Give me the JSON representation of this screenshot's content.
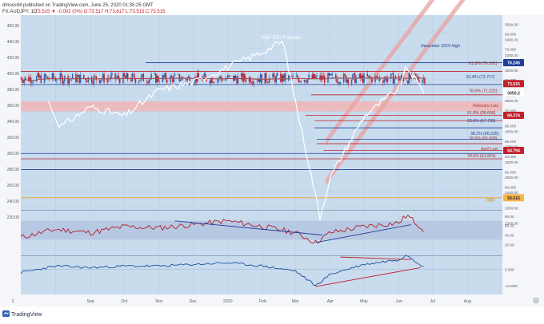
{
  "header": {
    "publisher_line": "dmoss94 published on TradingView.com, June 25, 2020 01:35:25 GMT",
    "symbol": "FX:AUDJPY, 1D",
    "ohlc": "73.515 ▼ -0.002 (0%) O:73.517 H:73.617 L:73.515 C:73.515"
  },
  "footer": {
    "brand": "TradingView"
  },
  "colors": {
    "candle_up": "#2d62b8",
    "candle_down": "#c0202a",
    "spx_line": "#ffffff",
    "ma_fast": "#b5443a",
    "ma_slow": "#6fa5cf",
    "channel": "#e7a3a0",
    "zone": "#f2b5b5",
    "rsi_line": "#b01e2a",
    "rsi_band": "#c9d3e8",
    "macd_line": "#1b4f9e",
    "trend_blue": "#1f3f9a",
    "trend_red": "#c0202a",
    "gold_line": "#f0a020"
  },
  "chart_data": [
    {
      "type": "candlestick",
      "title": "",
      "series": [
        {
          "name": "AUDJPY",
          "style": "candles",
          "x": [
            "2020-07-01",
            "2019-08-01",
            "2019-09-01",
            "2019-10-01",
            "2019-11-01",
            "2019-12-01",
            "2020-01-01",
            "2020-01-20",
            "2020-02-01",
            "2020-02-20",
            "2020-03-01",
            "2020-03-19",
            "2020-04-01",
            "2020-04-20",
            "2020-05-01",
            "2020-05-20",
            "2020-06-01",
            "2020-06-08",
            "2020-06-24"
          ],
          "close": [
            74.2,
            72.3,
            73.3,
            74.1,
            74.6,
            75.9,
            76.0,
            74.6,
            73.6,
            72.3,
            69.9,
            61.8,
            65.4,
            68.2,
            69.3,
            71.0,
            74.8,
            76.0,
            73.5
          ]
        },
        {
          "name": "S&P 500 Futures",
          "style": "line",
          "x": [
            "2019-07-25",
            "2019-08-05",
            "2019-09-01",
            "2019-10-01",
            "2019-11-01",
            "2019-12-01",
            "2020-01-01",
            "2020-02-01",
            "2020-02-19",
            "2020-03-01",
            "2020-03-23",
            "2020-04-01",
            "2020-05-01",
            "2020-06-01",
            "2020-06-08",
            "2020-06-24"
          ],
          "y": [
            3000,
            2830,
            2960,
            2900,
            3070,
            3120,
            3220,
            3320,
            3390,
            3000,
            2240,
            2500,
            2900,
            3080,
            3220,
            3050
          ]
        }
      ],
      "annotations": [
        "S&P 500 Futures",
        "December 2019 High",
        "61.8% (76.161)",
        "61.8% (72.717)",
        "78.6% (71.222)",
        "February Low",
        "61.8% (68.668)",
        "23.6% (67.739)",
        "38.2% (66.235)",
        "78.6% (65.668)",
        "April Low",
        "78.6% (61.824)",
        "2008"
      ],
      "left_axis_ticks": [
        "460.00",
        "440.00",
        "420.00",
        "400.00",
        "380.00",
        "360.00",
        "340.00",
        "320.00",
        "300.00",
        "280.00",
        "260.00",
        "240.00",
        "220.00"
      ],
      "right_axis_ticks": [
        "3500.00",
        "3400.00",
        "3300.00",
        "3200.00",
        "3100.00",
        "3000.00",
        "2900.00",
        "2800.00",
        "2700.00",
        "2600.00",
        "2500.00",
        "2400.00",
        "2300.00",
        "2200.00",
        "80.000",
        "78.000",
        "76.000",
        "74.000",
        "72.000",
        "70.000",
        "68.000",
        "66.000",
        "64.000",
        "62.000",
        "60.000"
      ],
      "price_tags": [
        "76.245",
        "73.515",
        "3050.2",
        "69.374",
        "64.794",
        "58.616"
      ],
      "x_axis": [
        "2",
        "Sep",
        "Oct",
        "Nov",
        "Dec",
        "2020",
        "Feb",
        "Mar",
        "Apr",
        "May",
        "Jun",
        "Jul",
        "Aug"
      ]
    },
    {
      "type": "line",
      "title": "",
      "series": [
        {
          "name": "RSI",
          "x": [
            "2019-07-01",
            "2019-08-01",
            "2019-09-01",
            "2019-10-01",
            "2019-11-01",
            "2019-12-01",
            "2020-01-01",
            "2020-02-01",
            "2020-03-01",
            "2020-03-19",
            "2020-04-01",
            "2020-05-01",
            "2020-06-01",
            "2020-06-08",
            "2020-06-24"
          ],
          "y": [
            35,
            52,
            45,
            58,
            55,
            62,
            70,
            58,
            45,
            24,
            45,
            58,
            66,
            82,
            50
          ]
        }
      ],
      "axis_ticks": [
        "80.00",
        "60.00",
        "40.00",
        "20.00"
      ],
      "band": [
        30,
        70
      ]
    },
    {
      "type": "line",
      "title": "",
      "series": [
        {
          "name": "MACD",
          "x": [
            "2019-07-01",
            "2019-08-01",
            "2019-09-01",
            "2019-10-01",
            "2019-11-01",
            "2019-12-01",
            "2020-01-01",
            "2020-02-01",
            "2020-03-01",
            "2020-03-19",
            "2020-04-01",
            "2020-05-01",
            "2020-06-01",
            "2020-06-08",
            "2020-06-24"
          ],
          "y": [
            -2,
            2,
            1,
            2,
            2,
            3,
            4,
            2,
            -1,
            -10,
            -3,
            3,
            6,
            9,
            1
          ]
        }
      ],
      "axis_ticks": [
        "0.000",
        "-10.000"
      ]
    }
  ]
}
